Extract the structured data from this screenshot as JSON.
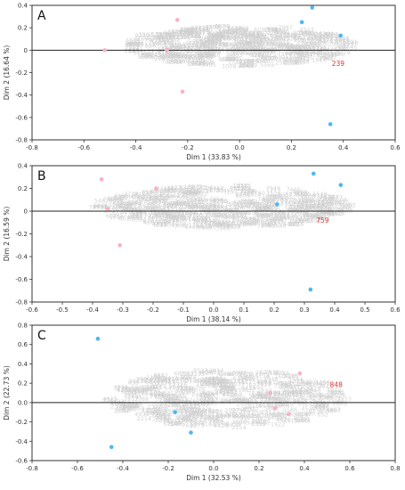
{
  "chart_data": [
    {
      "type": "scatter",
      "panel_label": "A",
      "xlabel": "Dim 1 (33.83 %)",
      "ylabel": "Dim 2 (16.64 %)",
      "xlim": [
        -0.8,
        0.6
      ],
      "ylim": [
        -0.8,
        0.4
      ],
      "xticks": [
        -0.8,
        -0.6,
        -0.4,
        -0.2,
        0,
        0.2,
        0.4,
        0.6
      ],
      "yticks": [
        -0.8,
        -0.6,
        -0.4,
        -0.2,
        0,
        0.2,
        0.4
      ],
      "xtick_labels": [
        "-0.8",
        "-0.6",
        "-0.4",
        "-0.2",
        "0.0",
        "0.2",
        "0.4",
        "0.6"
      ],
      "ytick_labels": [
        "-0.8",
        "-0.6",
        "-0.4",
        "-0.2",
        "0",
        "0.2",
        "0.4"
      ],
      "grid": false,
      "cloud": {
        "cx": 0.0,
        "cy": 0.02,
        "rx": 0.44,
        "ry": 0.18,
        "color": "#cfcfcf"
      },
      "series": [
        {
          "color": "#4db8f0",
          "points": [
            [
              0.28,
              0.38
            ],
            [
              0.24,
              0.25
            ],
            [
              0.39,
              0.13
            ],
            [
              0.35,
              -0.66
            ]
          ]
        },
        {
          "color": "#f7b3c2",
          "points": [
            [
              -0.52,
              0.0
            ],
            [
              -0.24,
              0.27
            ],
            [
              -0.22,
              -0.37
            ],
            [
              -0.28,
              0.0
            ]
          ]
        }
      ],
      "highlight": {
        "label": "239",
        "x": 0.38,
        "y": -0.14,
        "color": "#e83030"
      }
    },
    {
      "type": "scatter",
      "panel_label": "B",
      "xlabel": "Dim 1 (38.14 %)",
      "ylabel": "Dim 2 (16.59 %)",
      "xlim": [
        -0.6,
        0.6
      ],
      "ylim": [
        -0.8,
        0.4
      ],
      "xticks": [
        -0.6,
        -0.5,
        -0.4,
        -0.3,
        -0.2,
        -0.1,
        0,
        0.1,
        0.2,
        0.3,
        0.4,
        0.5,
        0.6
      ],
      "yticks": [
        -0.8,
        -0.6,
        -0.4,
        -0.2,
        0,
        0.2,
        0.4
      ],
      "xtick_labels": [
        "-0.6",
        "-0.5",
        "-0.4",
        "-0.3",
        "-0.2",
        "-0.1",
        "0.0",
        "0.1",
        "0.2",
        "0.3",
        "0.4",
        "0.5",
        "0.6"
      ],
      "ytick_labels": [
        "-0.8",
        "-0.6",
        "-0.4",
        "-0.2",
        "0",
        "0.2",
        "0.4"
      ],
      "grid": false,
      "cloud": {
        "cx": 0.03,
        "cy": 0.02,
        "rx": 0.42,
        "ry": 0.19,
        "color": "#cfcfcf"
      },
      "series": [
        {
          "color": "#4db8f0",
          "points": [
            [
              0.33,
              0.33
            ],
            [
              0.42,
              0.23
            ],
            [
              0.21,
              0.06
            ],
            [
              0.32,
              -0.69
            ]
          ]
        },
        {
          "color": "#f7b3c2",
          "points": [
            [
              -0.37,
              0.28
            ],
            [
              -0.19,
              0.2
            ],
            [
              -0.31,
              -0.3
            ],
            [
              -0.35,
              0.02
            ]
          ]
        }
      ],
      "highlight": {
        "label": "759",
        "x": 0.36,
        "y": -0.1,
        "color": "#e83030"
      }
    },
    {
      "type": "scatter",
      "panel_label": "C",
      "xlabel": "Dim 1 (32.53 %)",
      "ylabel": "Dim 2 (22.73 %)",
      "xlim": [
        -0.8,
        0.8
      ],
      "ylim": [
        -0.6,
        0.8
      ],
      "xticks": [
        -0.8,
        -0.6,
        -0.4,
        -0.2,
        0,
        0.2,
        0.4,
        0.6,
        0.8
      ],
      "yticks": [
        -0.6,
        -0.4,
        -0.2,
        0,
        0.2,
        0.4,
        0.6,
        0.8
      ],
      "xtick_labels": [
        "-0.8",
        "-0.6",
        "-0.4",
        "-0.2",
        "0.0",
        "0.2",
        "0.4",
        "0.6",
        "0.8"
      ],
      "ytick_labels": [
        "-0.6",
        "-0.4",
        "-0.2",
        "0.0",
        "0.2",
        "0.4",
        "0.6",
        "0.8"
      ],
      "grid": false,
      "cloud": {
        "cx": 0.06,
        "cy": 0.02,
        "rx": 0.52,
        "ry": 0.3,
        "color": "#cfcfcf"
      },
      "series": [
        {
          "color": "#4db8f0",
          "points": [
            [
              -0.51,
              0.66
            ],
            [
              -0.45,
              -0.46
            ],
            [
              -0.17,
              -0.1
            ],
            [
              -0.1,
              -0.31
            ]
          ]
        },
        {
          "color": "#f7b3c2",
          "points": [
            [
              0.38,
              0.3
            ],
            [
              0.25,
              0.1
            ],
            [
              0.27,
              -0.06
            ],
            [
              0.33,
              -0.12
            ]
          ]
        }
      ],
      "highlight": {
        "label": "848",
        "x": 0.54,
        "y": 0.16,
        "color": "#e83030"
      }
    }
  ]
}
